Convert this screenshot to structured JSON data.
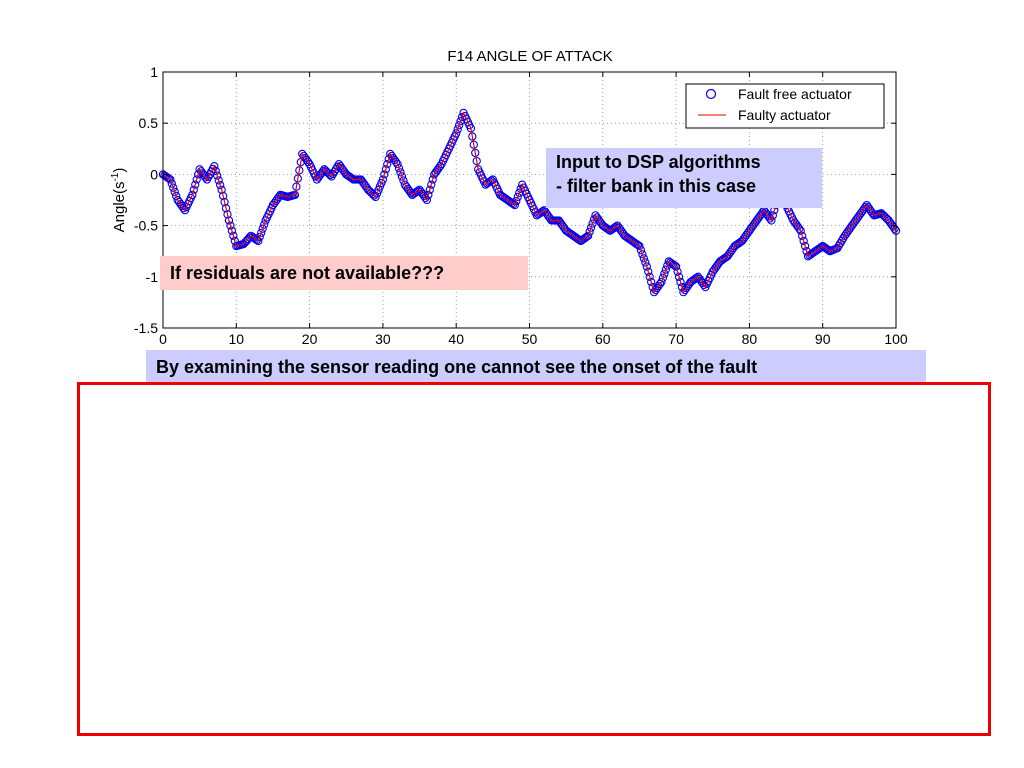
{
  "chart_data": {
    "type": "line",
    "title": "F14 ANGLE OF ATTACK",
    "xlabel": "",
    "ylabel_base": "Angle(s",
    "ylabel_sup": "-1",
    "ylabel_close": ")",
    "xlim": [
      0,
      100
    ],
    "ylim": [
      -1.5,
      1
    ],
    "x_ticks": [
      0,
      10,
      20,
      30,
      40,
      50,
      60,
      70,
      80,
      90,
      100
    ],
    "x_tick_labels": [
      "0",
      "10",
      "20",
      "30",
      "40",
      "50",
      "60",
      "70",
      "80",
      "90",
      "100"
    ],
    "y_ticks": [
      1,
      0.5,
      0,
      -0.5,
      -1,
      -1.5
    ],
    "y_tick_labels": [
      "1",
      "0.5",
      "0",
      "-0.5",
      "-1",
      "-1.5"
    ],
    "grid": true,
    "legend_position": "top-right",
    "series": [
      {
        "name": "Fault free actuator",
        "marker": "circle",
        "color": "#0000ee"
      },
      {
        "name": "Faulty actuator",
        "marker": "line",
        "color": "#ee0000"
      }
    ],
    "x": [
      0,
      1,
      2,
      3,
      4,
      5,
      6,
      7,
      8,
      9,
      10,
      11,
      12,
      13,
      14,
      15,
      16,
      17,
      18,
      19,
      20,
      21,
      22,
      23,
      24,
      25,
      26,
      27,
      28,
      29,
      30,
      31,
      32,
      33,
      34,
      35,
      36,
      37,
      38,
      39,
      40,
      41,
      42,
      43,
      44,
      45,
      46,
      47,
      48,
      49,
      50,
      51,
      52,
      53,
      54,
      55,
      56,
      57,
      58,
      59,
      60,
      61,
      62,
      63,
      64,
      65,
      66,
      67,
      68,
      69,
      70,
      71,
      72,
      73,
      74,
      75,
      76,
      77,
      78,
      79,
      80,
      81,
      82,
      83,
      84,
      85,
      86,
      87,
      88,
      89,
      90,
      91,
      92,
      93,
      94,
      95,
      96,
      97,
      98,
      99,
      100
    ],
    "y": [
      0.0,
      -0.05,
      -0.25,
      -0.35,
      -0.2,
      0.05,
      -0.05,
      0.08,
      -0.15,
      -0.45,
      -0.7,
      -0.68,
      -0.6,
      -0.65,
      -0.45,
      -0.3,
      -0.2,
      -0.22,
      -0.2,
      0.2,
      0.1,
      -0.05,
      0.05,
      -0.02,
      0.1,
      0.0,
      -0.05,
      -0.05,
      -0.15,
      -0.22,
      -0.05,
      0.2,
      0.1,
      -0.1,
      -0.2,
      -0.15,
      -0.25,
      0.0,
      0.1,
      0.25,
      0.4,
      0.6,
      0.45,
      0.05,
      -0.1,
      -0.05,
      -0.2,
      -0.25,
      -0.3,
      -0.1,
      -0.25,
      -0.4,
      -0.35,
      -0.45,
      -0.45,
      -0.55,
      -0.6,
      -0.65,
      -0.6,
      -0.4,
      -0.5,
      -0.55,
      -0.5,
      -0.6,
      -0.65,
      -0.7,
      -0.9,
      -1.15,
      -1.05,
      -0.85,
      -0.9,
      -1.15,
      -1.05,
      -1.0,
      -1.1,
      -0.95,
      -0.85,
      -0.8,
      -0.7,
      -0.65,
      -0.55,
      -0.45,
      -0.35,
      -0.45,
      -0.2,
      -0.3,
      -0.45,
      -0.55,
      -0.8,
      -0.75,
      -0.7,
      -0.75,
      -0.72,
      -0.6,
      -0.5,
      -0.4,
      -0.3,
      -0.4,
      -0.38,
      -0.45,
      -0.55
    ]
  },
  "annotations": {
    "dsp_line1": "Input to DSP algorithms",
    "dsp_line2": "- filter bank in this case",
    "residuals": "If residuals are not available???",
    "sensor": "By examining the sensor reading one cannot see the onset of the fault"
  },
  "colors": {
    "callout_blue": "#ccccff",
    "callout_pink": "#ffcccc",
    "frame_red": "#ee0000"
  }
}
